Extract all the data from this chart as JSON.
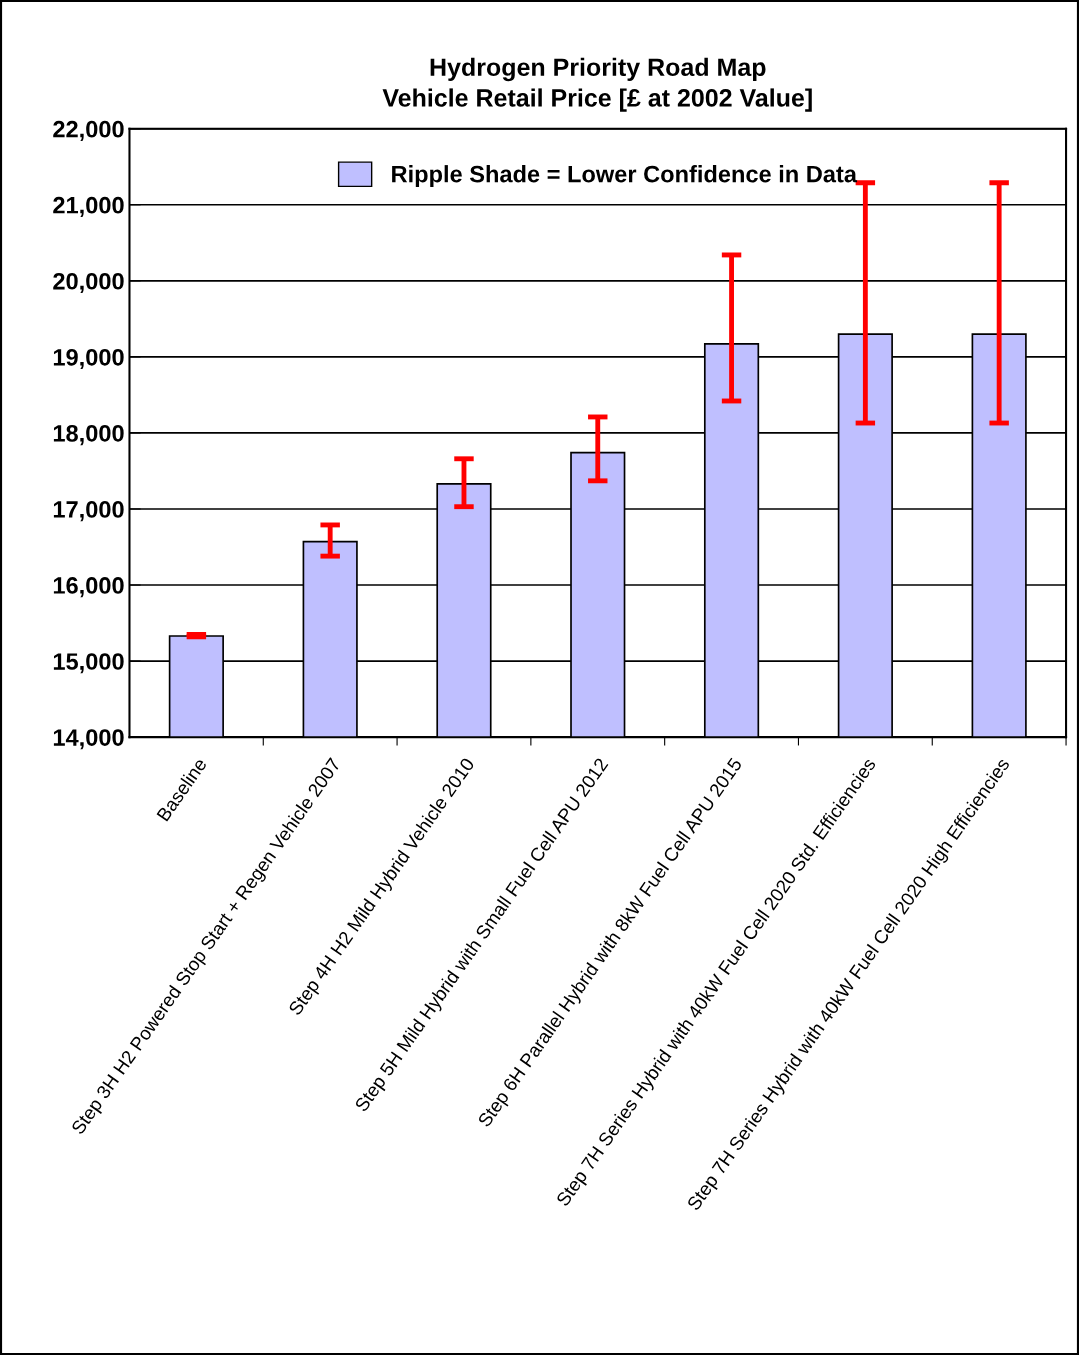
{
  "chart_data": {
    "type": "bar",
    "title": "Hydrogen Priority Road Map\nVehicle Retail Price [£ at 2002 Value]",
    "categories": [
      "Baseline",
      "Step 3H H2 Powered Stop Start + Regen Vehicle 2007",
      "Step 4H H2 Mild Hybrid Vehicle 2010",
      "Step 5H Mild Hybrid with Small Fuel Cell APU 2012",
      "Step 6H Parallel Hybrid with 8kW Fuel Cell APU 2015",
      "Step 7H Series Hybrid with 40kW Fuel Cell 2020 Std. Efficiencies",
      "Step 7H Series Hybrid with 40kW Fuel Cell 2020 High Efficiencies"
    ],
    "series": [
      {
        "name": "Ripple Shade = Lower Confidence in Data",
        "color": "#bfbfff",
        "values": [
          15330,
          16570,
          17330,
          17740,
          19170,
          19300,
          19300
        ],
        "errors": [
          [
            15320,
            15350
          ],
          [
            16380,
            16790
          ],
          [
            17030,
            17660
          ],
          [
            17370,
            18210
          ],
          [
            18420,
            20340
          ],
          [
            18130,
            21290
          ],
          [
            18130,
            21290
          ]
        ]
      }
    ],
    "ylim": [
      14000,
      22000
    ],
    "yticks": [
      {
        "value": 14000,
        "label": "14,000"
      },
      {
        "value": 15000,
        "label": "15,000"
      },
      {
        "value": 16000,
        "label": "16,000"
      },
      {
        "value": 17000,
        "label": "17,000"
      },
      {
        "value": 18000,
        "label": "18,000"
      },
      {
        "value": 19000,
        "label": "19,000"
      },
      {
        "value": 20000,
        "label": "20,000"
      },
      {
        "value": 21000,
        "label": "21,000"
      },
      {
        "value": 22000,
        "label": "22,000"
      }
    ],
    "grid": "y",
    "legend": "top"
  }
}
